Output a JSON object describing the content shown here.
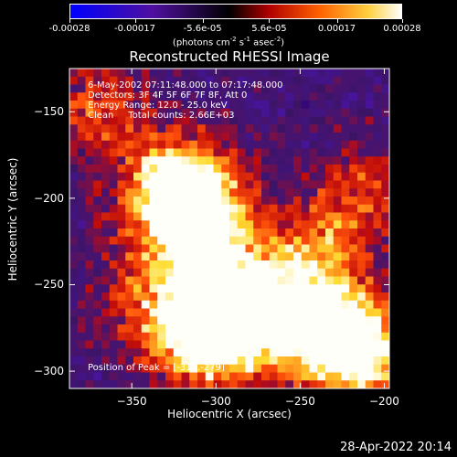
{
  "colorbar": {
    "ticks": [
      "-0.00028",
      "-0.00017",
      "-5.6e-05",
      "5.6e-05",
      "0.00017",
      "0.00028"
    ],
    "tick_values": [
      -0.00028,
      -0.00017,
      -5.6e-05,
      5.6e-05,
      0.00017,
      0.00028
    ],
    "units_prefix": "(photons cm",
    "units_exp1": "-2",
    "units_mid1": " s",
    "units_exp2": "-1",
    "units_mid2": " asec",
    "units_exp3": "-2",
    "units_suffix": ")",
    "colors": [
      "#0000ff",
      "#400080",
      "#000000",
      "#c00000",
      "#ff8000",
      "#ffff80",
      "#ffffff"
    ]
  },
  "annotations": {
    "time_range": "6-May-2002 07:11:48.000 to 07:17:48.000",
    "detectors": "Detectors: 3F 4F 5F 6F 7F 8F, Att 0",
    "energy_range": "Energy Range: 12.0 - 25.0 keV",
    "clean_counts": "Clean     Total counts: 2.66E+03",
    "peak_position": "Position of Peak = [-310,-279]"
  },
  "chart_data": {
    "type": "heatmap",
    "title": "Reconstructed RHESSI Image",
    "xlabel": "Heliocentric X (arcsec)",
    "ylabel": "Heliocentric Y (arcsec)",
    "xlim": [
      -387,
      -197
    ],
    "ylim": [
      -310,
      -125
    ],
    "xticks": [
      -350,
      -300,
      -250,
      -200
    ],
    "yticks": [
      -150,
      -200,
      -250,
      -300
    ],
    "xtick_labels": [
      "−350",
      "−300",
      "−250",
      "−200"
    ],
    "ytick_labels": [
      "−150",
      "−200",
      "−250",
      "−300"
    ],
    "grid": false,
    "bright_regions": [
      {
        "x": -313,
        "y": -205,
        "intensity": 0.95
      },
      {
        "x": -325,
        "y": -195,
        "intensity": 0.85
      },
      {
        "x": -310,
        "y": -279,
        "intensity": 1.0
      },
      {
        "x": -290,
        "y": -270,
        "intensity": 0.8
      },
      {
        "x": -260,
        "y": -268,
        "intensity": 0.75
      },
      {
        "x": -225,
        "y": -280,
        "intensity": 0.85
      },
      {
        "x": -215,
        "y": -292,
        "intensity": 0.7
      },
      {
        "x": -240,
        "y": -230,
        "intensity": 0.6
      },
      {
        "x": -300,
        "y": -238,
        "intensity": 0.6
      },
      {
        "x": -370,
        "y": -150,
        "intensity": 0.55
      },
      {
        "x": -210,
        "y": -195,
        "intensity": 0.5
      },
      {
        "x": -345,
        "y": -255,
        "intensity": 0.45
      }
    ]
  },
  "timestamp": "28-Apr-2022 20:14"
}
